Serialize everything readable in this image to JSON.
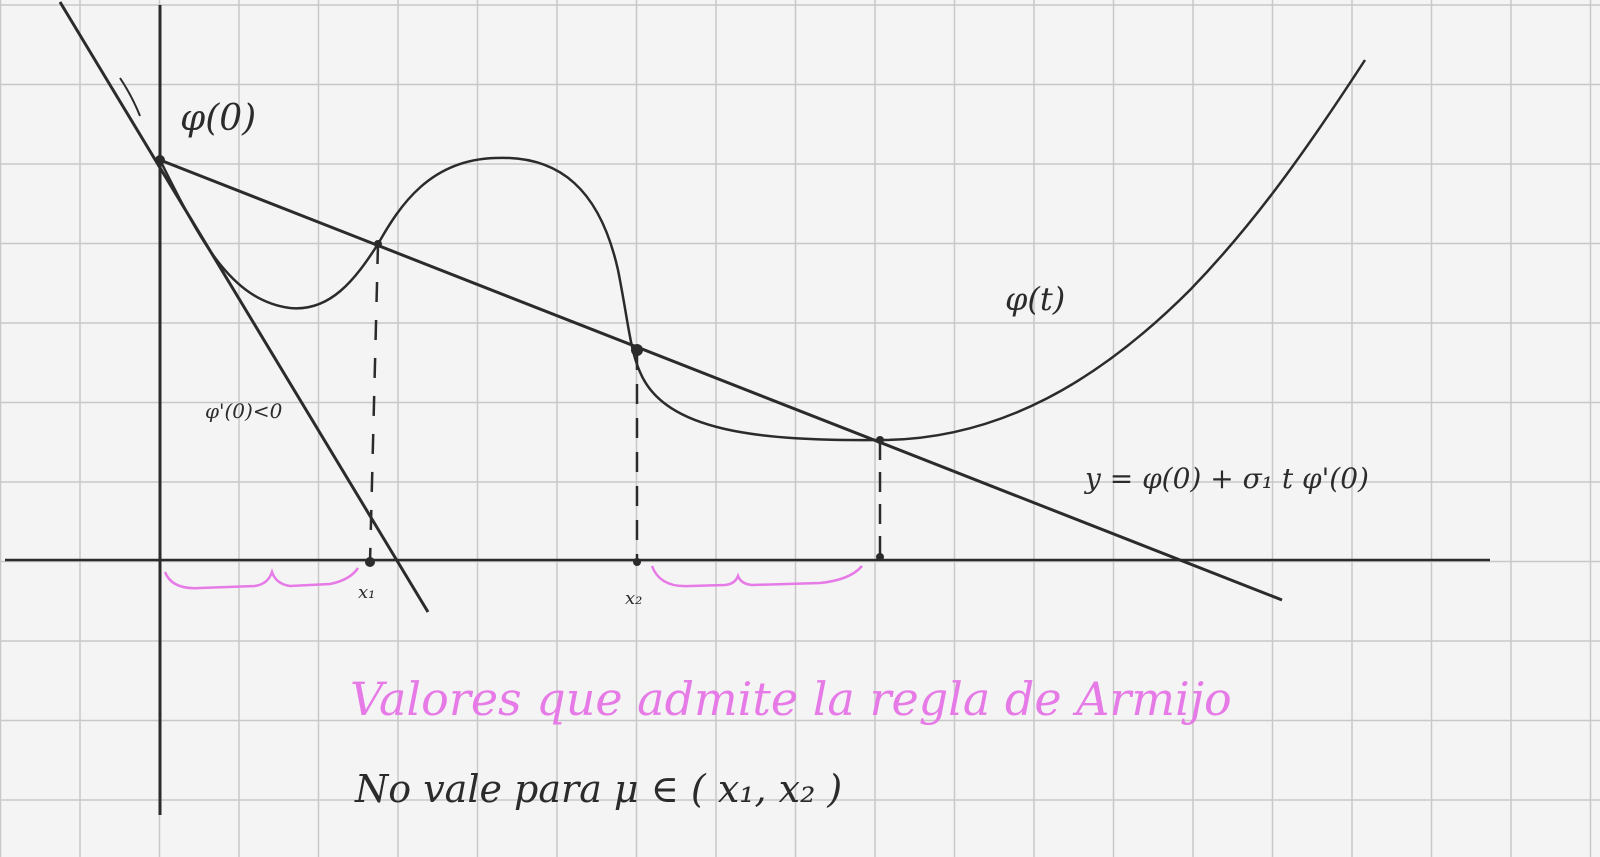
{
  "labels": {
    "phi_0": "φ(0)",
    "phi_t": "φ(t)",
    "tangent": "φ'(0)<0",
    "line_eq": "y = φ(0) + σ₁ t φ'(0)",
    "x1": "x₁",
    "x2": "x₂",
    "valid_values": "Valores que admite la regla de Armijo",
    "invalid_values": "No vale para  μ ∈ ( x₁, x₂ )"
  },
  "colors": {
    "ink": "#2b2b2b",
    "highlight": "#e67ae6",
    "grid": "#c8c8c8",
    "paper": "#f4f4f4"
  }
}
